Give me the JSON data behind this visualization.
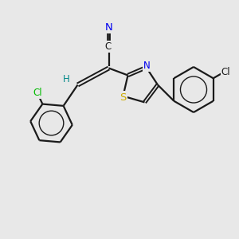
{
  "bg_color": "#e8e8e8",
  "bond_color": "#1a1a1a",
  "atom_colors": {
    "N": "#0000ee",
    "S": "#ccaa00",
    "Cl_green": "#00bb00",
    "Cl_dark": "#1a1a1a",
    "C": "#1a1a1a",
    "H": "#008888"
  },
  "figsize": [
    3.0,
    3.0
  ],
  "dpi": 100
}
